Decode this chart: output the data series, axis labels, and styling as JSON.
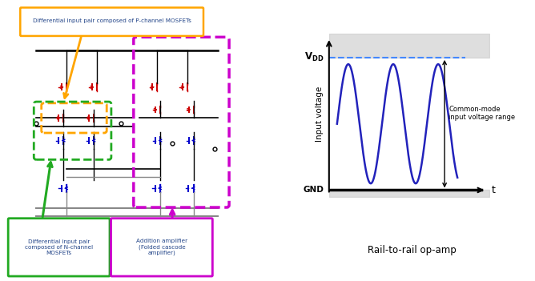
{
  "fig_width": 6.68,
  "fig_height": 3.51,
  "background_color": "#ffffff",
  "title_label": "Rail-to-rail op-amp",
  "ylabel_text": "Input voltage",
  "p_label": "Differential input pair composed of P-channel MOSFETs",
  "n_label": "Differential input pair\ncomposed of N-channel\nMOSFETs",
  "add_label": "Addition amplifier\n(Folded cascode\namplifier)",
  "orange_box_color": "#FFA500",
  "green_box_color": "#22AA22",
  "magenta_box_color": "#CC00CC",
  "wave_color": "#2222BB",
  "vdd_line_color": "#4488FF",
  "red_mos": "#CC0000",
  "blue_mos": "#0000CC"
}
